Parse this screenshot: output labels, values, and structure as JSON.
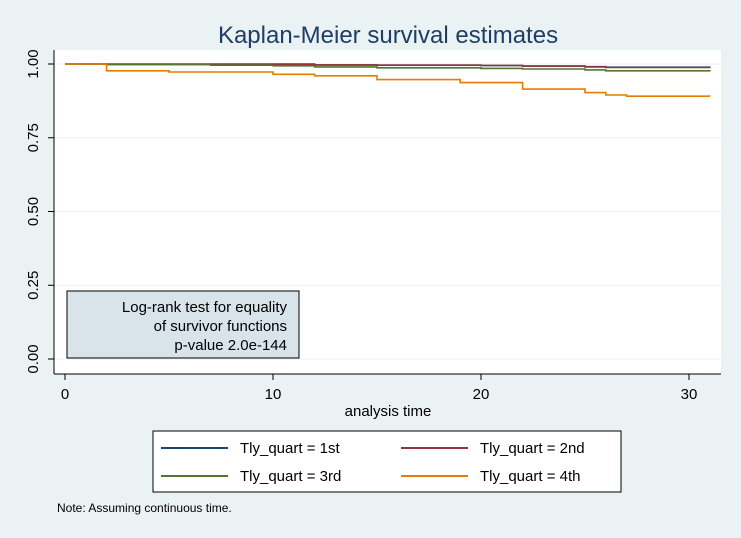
{
  "chart_data": {
    "type": "line",
    "title": "Kaplan-Meier survival estimates",
    "xlabel": "analysis time",
    "ylabel": "",
    "xlim": [
      0,
      31
    ],
    "ylim": [
      0,
      1
    ],
    "x_ticks": [
      "0",
      "10",
      "20",
      "30"
    ],
    "y_ticks": [
      "0.00",
      "0.25",
      "0.50",
      "0.75",
      "1.00"
    ],
    "grid": true,
    "legend_position": "bottom",
    "series": [
      {
        "name": "Tly_quart = 1st",
        "color": "#1a476f",
        "points": [
          [
            0,
            1.0
          ],
          [
            2,
            1.0
          ],
          [
            7,
            1.0
          ],
          [
            10,
            1.0
          ],
          [
            12,
            0.997
          ],
          [
            15,
            0.996
          ],
          [
            20,
            0.995
          ],
          [
            22,
            0.993
          ],
          [
            25,
            0.991
          ],
          [
            26,
            0.989
          ],
          [
            31,
            0.988
          ]
        ]
      },
      {
        "name": "Tly_quart = 2nd",
        "color": "#90353b",
        "points": [
          [
            0,
            1.0
          ],
          [
            2,
            0.999
          ],
          [
            10,
            0.998
          ],
          [
            12,
            0.997
          ],
          [
            15,
            0.996
          ],
          [
            20,
            0.995
          ],
          [
            22,
            0.993
          ],
          [
            25,
            0.99
          ],
          [
            26,
            0.988
          ],
          [
            31,
            0.986
          ]
        ]
      },
      {
        "name": "Tly_quart = 3rd",
        "color": "#55752f",
        "points": [
          [
            0,
            1.0
          ],
          [
            2,
            0.998
          ],
          [
            7,
            0.996
          ],
          [
            10,
            0.994
          ],
          [
            12,
            0.99
          ],
          [
            15,
            0.987
          ],
          [
            20,
            0.985
          ],
          [
            22,
            0.983
          ],
          [
            25,
            0.98
          ],
          [
            26,
            0.977
          ],
          [
            31,
            0.975
          ]
        ]
      },
      {
        "name": "Tly_quart = 4th",
        "color": "#e37e00",
        "points": [
          [
            0,
            1.0
          ],
          [
            2,
            0.977
          ],
          [
            5,
            0.973
          ],
          [
            10,
            0.965
          ],
          [
            12,
            0.96
          ],
          [
            15,
            0.947
          ],
          [
            19,
            0.937
          ],
          [
            22,
            0.915
          ],
          [
            25,
            0.903
          ],
          [
            26,
            0.895
          ],
          [
            27,
            0.891
          ],
          [
            31,
            0.89
          ]
        ]
      }
    ],
    "annotation": {
      "lines": [
        "Log-rank test for equality",
        "of survivor functions",
        "p-value  2.0e-144"
      ]
    },
    "note": "Note: Assuming continuous time."
  },
  "colors": {
    "background": "#eaf2f3",
    "plot_background": "#ffffff",
    "title": "#1e3e66",
    "grid": "#eaf2f3",
    "annotation_fill": "#d8e3ea"
  }
}
